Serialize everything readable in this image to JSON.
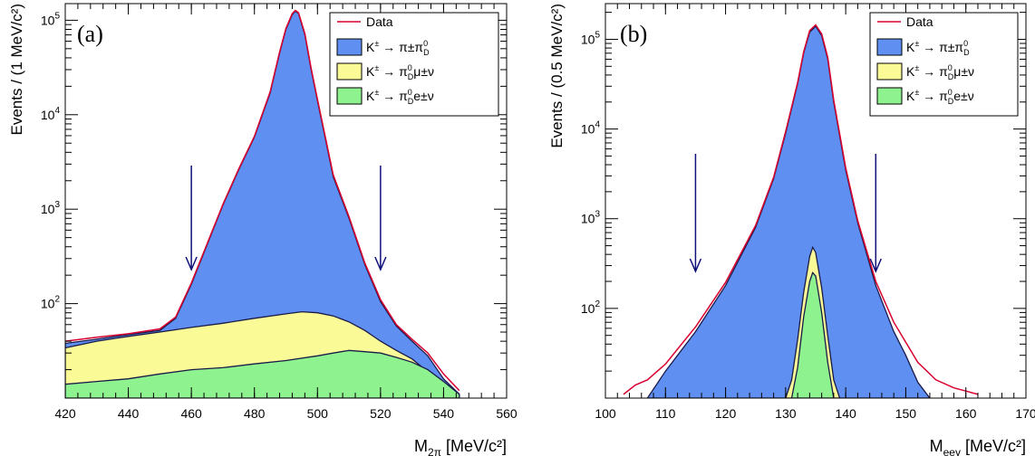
{
  "chart_data": [
    {
      "panel_label": "(a)",
      "type": "area",
      "ylabel": "Events / (1 MeV/c²)",
      "xlabel_main": "M",
      "xlabel_sub": "2π",
      "xlabel_unit": " [MeV/c²]",
      "xlim": [
        420,
        560
      ],
      "ylim": [
        10,
        150000
      ],
      "yscale": "log",
      "x_ticks": [
        420,
        440,
        460,
        480,
        500,
        520,
        540,
        560
      ],
      "y_ticks": [
        {
          "value": 100,
          "base": "10",
          "exp": "2"
        },
        {
          "value": 1000,
          "base": "10",
          "exp": "3"
        },
        {
          "value": 10000,
          "base": "10",
          "exp": "4"
        },
        {
          "value": 100000,
          "base": "10",
          "exp": "5"
        }
      ],
      "arrows_x": [
        460,
        520
      ],
      "legend_position": "top-right",
      "legend": [
        {
          "kind": "line",
          "color": "#d9002f",
          "text": "Data"
        },
        {
          "kind": "box",
          "color": "#5f8ff0",
          "main": "K",
          "sup": "±",
          "arrow": " → ",
          "rest": "π±π",
          "rest_sub": "D",
          "rest_sup": "0",
          "tail": ""
        },
        {
          "kind": "box",
          "color": "#fafa96",
          "main": "K",
          "sup": "±",
          "arrow": " → ",
          "rest": "π",
          "rest_sub": "D",
          "rest_sup": "0",
          "tail": "μ±ν"
        },
        {
          "kind": "box",
          "color": "#8ef28e",
          "main": "K",
          "sup": "±",
          "arrow": " → ",
          "rest": "π",
          "rest_sub": "D",
          "rest_sup": "0",
          "tail": "e±ν"
        }
      ],
      "series": [
        {
          "name": "K± → π±π⁰D",
          "color": "#5f8ff0",
          "x": [
            420,
            430,
            440,
            450,
            455,
            460,
            465,
            470,
            475,
            480,
            485,
            488,
            490,
            492,
            493,
            494,
            496,
            498,
            500,
            505,
            510,
            515,
            520,
            525,
            530,
            535,
            540,
            545
          ],
          "y": [
            38,
            42,
            47,
            52,
            70,
            160,
            420,
            1100,
            2600,
            5800,
            17000,
            45000,
            80000,
            115000,
            125000,
            118000,
            70000,
            30000,
            14000,
            2200,
            800,
            260,
            105,
            58,
            40,
            28,
            16,
            11
          ]
        },
        {
          "name": "K± → π⁰Dμ±ν",
          "color": "#fafa96",
          "x": [
            420,
            430,
            440,
            450,
            460,
            470,
            480,
            490,
            495,
            500,
            505,
            510,
            515,
            520,
            525,
            530,
            535,
            540,
            545
          ],
          "y": [
            34,
            40,
            45,
            50,
            56,
            62,
            70,
            78,
            82,
            80,
            74,
            64,
            52,
            40,
            32,
            26,
            19,
            14,
            11
          ]
        },
        {
          "name": "K± → π⁰De±ν",
          "color": "#8ef28e",
          "x": [
            420,
            430,
            440,
            450,
            460,
            470,
            480,
            490,
            500,
            505,
            510,
            515,
            520,
            525,
            530,
            535,
            540,
            545
          ],
          "y": [
            14,
            15,
            16,
            18,
            20,
            21,
            23,
            25,
            28,
            30,
            32,
            31,
            30,
            27,
            24,
            20,
            15,
            11
          ]
        },
        {
          "name": "Data",
          "color": "#d9002f",
          "x": [
            420,
            430,
            440,
            450,
            455,
            460,
            465,
            470,
            475,
            480,
            485,
            488,
            490,
            492,
            493,
            494,
            496,
            498,
            500,
            505,
            510,
            515,
            520,
            525,
            530,
            535,
            540,
            545
          ],
          "y": [
            40,
            44,
            48,
            54,
            72,
            165,
            430,
            1120,
            2650,
            5900,
            17500,
            46000,
            82000,
            118000,
            127000,
            120000,
            72000,
            31000,
            14500,
            2300,
            830,
            270,
            110,
            60,
            42,
            30,
            18,
            12
          ]
        }
      ]
    },
    {
      "panel_label": "(b)",
      "type": "area",
      "ylabel": "Events / (0.5 MeV/c²)",
      "xlabel_main": "M",
      "xlabel_sub": "eeγ",
      "xlabel_unit": " [MeV/c²]",
      "xlim": [
        100,
        170
      ],
      "ylim": [
        10,
        250000
      ],
      "yscale": "log",
      "x_ticks": [
        100,
        110,
        120,
        130,
        140,
        150,
        160,
        170
      ],
      "y_ticks": [
        {
          "value": 100,
          "base": "10",
          "exp": "2"
        },
        {
          "value": 1000,
          "base": "10",
          "exp": "3"
        },
        {
          "value": 10000,
          "base": "10",
          "exp": "4"
        },
        {
          "value": 100000,
          "base": "10",
          "exp": "5"
        }
      ],
      "arrows_x": [
        115,
        145
      ],
      "legend_position": "top-right",
      "legend": [
        {
          "kind": "line",
          "color": "#d9002f",
          "text": "Data"
        },
        {
          "kind": "box",
          "color": "#5f8ff0",
          "main": "K",
          "sup": "±",
          "arrow": " → ",
          "rest": "π±π",
          "rest_sub": "D",
          "rest_sup": "0",
          "tail": ""
        },
        {
          "kind": "box",
          "color": "#fafa96",
          "main": "K",
          "sup": "±",
          "arrow": " → ",
          "rest": "π",
          "rest_sub": "D",
          "rest_sup": "0",
          "tail": "μ±ν"
        },
        {
          "kind": "box",
          "color": "#8ef28e",
          "main": "K",
          "sup": "±",
          "arrow": " → ",
          "rest": "π",
          "rest_sub": "D",
          "rest_sup": "0",
          "tail": "e±ν"
        }
      ],
      "series": [
        {
          "name": "K± → π±π⁰D",
          "color": "#5f8ff0",
          "x": [
            107,
            110,
            115,
            120,
            125,
            128,
            130,
            132,
            133,
            134,
            135,
            136,
            137,
            138,
            140,
            142,
            145,
            148,
            150,
            152,
            154
          ],
          "y": [
            10,
            20,
            55,
            180,
            800,
            2800,
            9000,
            32000,
            70000,
            120000,
            140000,
            110000,
            60000,
            20000,
            3500,
            900,
            180,
            55,
            30,
            15,
            10
          ]
        },
        {
          "name": "K± → π⁰Dμ±ν",
          "color": "#fafa96",
          "x": [
            130,
            131,
            132,
            133,
            134,
            134.5,
            135,
            136,
            137,
            138,
            139
          ],
          "y": [
            10,
            16,
            45,
            150,
            380,
            480,
            420,
            170,
            50,
            16,
            10
          ]
        },
        {
          "name": "K± → π⁰De±ν",
          "color": "#8ef28e",
          "x": [
            131,
            132,
            133,
            134,
            134.5,
            135,
            136,
            137,
            138
          ],
          "y": [
            10,
            22,
            80,
            200,
            250,
            230,
            90,
            25,
            10
          ]
        },
        {
          "name": "Data",
          "color": "#d9002f",
          "x": [
            103,
            105,
            107,
            110,
            115,
            120,
            125,
            128,
            130,
            132,
            133,
            134,
            135,
            136,
            137,
            138,
            140,
            142,
            145,
            148,
            150,
            152,
            155,
            158,
            160,
            162
          ],
          "y": [
            11,
            14,
            16,
            24,
            62,
            195,
            840,
            2900,
            9400,
            33000,
            72000,
            125000,
            145000,
            115000,
            63000,
            21000,
            3700,
            950,
            200,
            70,
            42,
            25,
            16,
            13,
            12,
            11
          ]
        }
      ]
    }
  ]
}
